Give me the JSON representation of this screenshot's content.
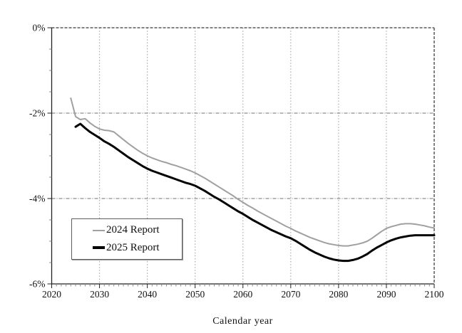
{
  "chart_data": {
    "type": "line",
    "title": "",
    "xlabel": "Calendar year",
    "ylabel": "",
    "xlim": [
      2020,
      2100
    ],
    "ylim": [
      -6,
      0
    ],
    "x_major_ticks": [
      2020,
      2030,
      2040,
      2050,
      2060,
      2070,
      2080,
      2090,
      2100
    ],
    "x_minor_step": 1,
    "y_ticks": {
      "values": [
        0,
        -2,
        -4,
        -6
      ],
      "labels": [
        "0%",
        "-2%",
        "-4%",
        "-6%"
      ]
    },
    "y_minor_step": 0.5,
    "grid": {
      "vertical_at": [
        2030,
        2040,
        2050,
        2060,
        2070,
        2080,
        2090
      ],
      "horizontal_at": [
        -2,
        -4
      ]
    },
    "legend": {
      "position": "lower-left"
    },
    "colors": {
      "axis": "#222222",
      "grid_vertical": "#ababab",
      "grid_horizontal": "#6f6f6f",
      "border_dashed": "#5a5a5a",
      "minor_tick": "#8a8a8a",
      "tick_label": "#111111"
    },
    "series": [
      {
        "name": "2024 Report",
        "color": "#a0a0a0",
        "line_width": 2,
        "x_start": 2024,
        "x_step": 1,
        "values": [
          -1.65,
          -2.08,
          -2.15,
          -2.13,
          -2.23,
          -2.31,
          -2.37,
          -2.4,
          -2.41,
          -2.44,
          -2.53,
          -2.62,
          -2.71,
          -2.79,
          -2.87,
          -2.94,
          -3.0,
          -3.05,
          -3.09,
          -3.13,
          -3.16,
          -3.2,
          -3.23,
          -3.27,
          -3.31,
          -3.35,
          -3.4,
          -3.46,
          -3.52,
          -3.59,
          -3.66,
          -3.73,
          -3.8,
          -3.87,
          -3.94,
          -4.02,
          -4.09,
          -4.16,
          -4.22,
          -4.29,
          -4.35,
          -4.41,
          -4.47,
          -4.53,
          -4.59,
          -4.65,
          -4.7,
          -4.76,
          -4.81,
          -4.86,
          -4.91,
          -4.95,
          -4.99,
          -5.03,
          -5.06,
          -5.08,
          -5.1,
          -5.11,
          -5.11,
          -5.09,
          -5.07,
          -5.04,
          -5.0,
          -4.93,
          -4.85,
          -4.77,
          -4.7,
          -4.66,
          -4.63,
          -4.6,
          -4.59,
          -4.59,
          -4.6,
          -4.62,
          -4.64,
          -4.67,
          -4.69
        ]
      },
      {
        "name": "2025 Report",
        "color": "#000000",
        "line_width": 3,
        "x_start": 2025,
        "x_step": 1,
        "values": [
          -2.32,
          -2.25,
          -2.35,
          -2.44,
          -2.51,
          -2.58,
          -2.66,
          -2.72,
          -2.79,
          -2.87,
          -2.95,
          -3.03,
          -3.1,
          -3.17,
          -3.24,
          -3.3,
          -3.35,
          -3.39,
          -3.43,
          -3.47,
          -3.51,
          -3.55,
          -3.59,
          -3.63,
          -3.66,
          -3.7,
          -3.76,
          -3.82,
          -3.89,
          -3.96,
          -4.02,
          -4.09,
          -4.16,
          -4.23,
          -4.3,
          -4.36,
          -4.43,
          -4.5,
          -4.56,
          -4.62,
          -4.68,
          -4.74,
          -4.79,
          -4.84,
          -4.89,
          -4.93,
          -4.99,
          -5.06,
          -5.13,
          -5.2,
          -5.26,
          -5.31,
          -5.36,
          -5.4,
          -5.43,
          -5.45,
          -5.46,
          -5.46,
          -5.44,
          -5.41,
          -5.36,
          -5.3,
          -5.22,
          -5.15,
          -5.09,
          -5.03,
          -4.98,
          -4.94,
          -4.91,
          -4.89,
          -4.87,
          -4.86,
          -4.86,
          -4.86,
          -4.86,
          -4.86
        ]
      }
    ]
  }
}
